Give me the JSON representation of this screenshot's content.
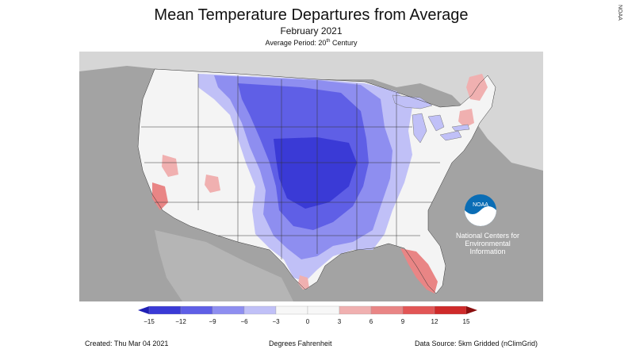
{
  "title": "Mean Temperature Departures from Average",
  "subtitle": "February 2021",
  "average_period": {
    "prefix": "Average Period: 20",
    "sup": "th",
    "suffix": " Century"
  },
  "side_tag": "NOAA",
  "logo": {
    "wordmark": "NOAA",
    "line1": "National Centers for",
    "line2": "Environmental",
    "line3": "Information"
  },
  "legend": {
    "ticks": [
      "−15",
      "−12",
      "−9",
      "−6",
      "−3",
      "0",
      "3",
      "6",
      "9",
      "12",
      "15"
    ],
    "colors": [
      "#1f1fb5",
      "#3a3ad6",
      "#5f5fe6",
      "#8e8ef0",
      "#c0c0f7",
      "#f7f7f7",
      "#f7f7f7",
      "#f0b0b0",
      "#e98585",
      "#e25656",
      "#cf2a2a",
      "#8a0f0f"
    ]
  },
  "footer": {
    "created": "Created: Thu Mar 04 2021",
    "units": "Degrees Fahrenheit",
    "source": "Data Source: 5km Gridded (nClimGrid)"
  },
  "colors": {
    "ocean_land_outside": "#a3a3a3",
    "canada_land": "#d6d6d6",
    "us_land": "#f4f4f4",
    "cold_light": "#c0c0f7",
    "cold_mid": "#8e8ef0",
    "cold_strong": "#5f5fe6",
    "cold_deep": "#3a3ad6",
    "warm_light": "#f0b0b0",
    "warm_mid": "#e98585",
    "lakes": "#c0c0f7"
  }
}
